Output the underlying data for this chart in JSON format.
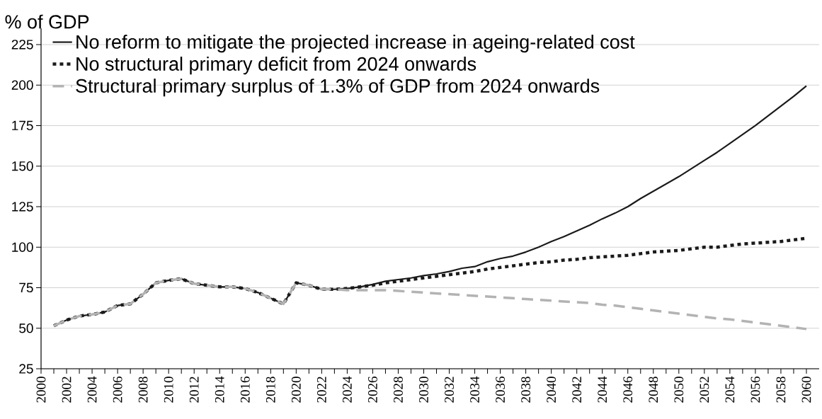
{
  "chart_data": {
    "type": "line",
    "ylabel": "% of GDP",
    "xlim": [
      2000,
      2061
    ],
    "ylim": [
      25,
      235
    ],
    "yticks": [
      25,
      50,
      75,
      100,
      125,
      150,
      175,
      200,
      225
    ],
    "xticks": [
      2000,
      {
        "value": 2001,
        "label": null
      },
      2002,
      {
        "value": 2003,
        "label": null
      },
      2004,
      {
        "value": 2005,
        "label": null
      },
      2006,
      {
        "value": 2007,
        "label": null
      },
      2008,
      {
        "value": 2009,
        "label": null
      },
      2010,
      {
        "value": 2011,
        "label": null
      },
      2012,
      {
        "value": 2013,
        "label": null
      },
      2014,
      {
        "value": 2015,
        "label": null
      },
      2016,
      {
        "value": 2017,
        "label": null
      },
      2018,
      {
        "value": 2019,
        "label": null
      },
      2020,
      {
        "value": 2021,
        "label": null
      },
      2022,
      {
        "value": 2023,
        "label": null
      },
      2024,
      {
        "value": 2025,
        "label": null
      },
      2026,
      {
        "value": 2027,
        "label": null
      },
      2028,
      {
        "value": 2029,
        "label": null
      },
      2030,
      {
        "value": 2031,
        "label": null
      },
      2032,
      {
        "value": 2033,
        "label": null
      },
      2034,
      {
        "value": 2035,
        "label": null
      },
      2036,
      {
        "value": 2037,
        "label": null
      },
      2038,
      {
        "value": 2039,
        "label": null
      },
      2040,
      {
        "value": 2041,
        "label": null
      },
      2042,
      {
        "value": 2043,
        "label": null
      },
      2044,
      {
        "value": 2045,
        "label": null
      },
      2046,
      {
        "value": 2047,
        "label": null
      },
      2048,
      {
        "value": 2049,
        "label": null
      },
      2050,
      {
        "value": 2051,
        "label": null
      },
      2052,
      {
        "value": 2053,
        "label": null
      },
      2054,
      {
        "value": 2055,
        "label": null
      },
      2056,
      {
        "value": 2057,
        "label": null
      },
      2058,
      {
        "value": 2059,
        "label": null
      },
      2060
    ],
    "grid": "y",
    "legend": "top left",
    "marker": "none",
    "x": [
      2001,
      2002,
      2003,
      2004,
      2005,
      2006,
      2007,
      2008,
      2009,
      2010,
      2011,
      2012,
      2013,
      2014,
      2015,
      2016,
      2017,
      2018,
      2019,
      2020,
      2021,
      2022,
      2023,
      2024,
      2025,
      2026,
      2027,
      2028,
      2029,
      2030,
      2031,
      2032,
      2033,
      2034,
      2035,
      2036,
      2037,
      2038,
      2039,
      2040,
      2041,
      2042,
      2043,
      2044,
      2045,
      2046,
      2047,
      2048,
      2049,
      2050,
      2051,
      2052,
      2053,
      2054,
      2055,
      2056,
      2057,
      2058,
      2059,
      2060
    ],
    "series": [
      {
        "name": "No reform to mitigate the projected increase in ageing-related cost",
        "color": "#1a1a1a",
        "line_style": "solid",
        "values": [
          51.5,
          55,
          57.5,
          58.5,
          60,
          64,
          65,
          71,
          78,
          79.5,
          80.5,
          77.5,
          76.5,
          75.5,
          75.5,
          74.5,
          72,
          68.5,
          65,
          78,
          76.5,
          74,
          74,
          74.5,
          75.5,
          77,
          79,
          80,
          81,
          82.5,
          83.5,
          85,
          87,
          88,
          91,
          93,
          94.5,
          97,
          100,
          103.5,
          106.5,
          110,
          113.5,
          117.5,
          121,
          125,
          130,
          134.5,
          139,
          143.5,
          148.5,
          153.5,
          158.5,
          164,
          169.5,
          175,
          181,
          187,
          193,
          199.5
        ]
      },
      {
        "name": "No structural primary deficit from 2024 onwards",
        "color": "#1a1a1a",
        "line_style": "dotted",
        "values": [
          51.5,
          55,
          57.5,
          58.5,
          60,
          64,
          65,
          71,
          78,
          79.5,
          80.5,
          77.5,
          76.5,
          75.5,
          75.5,
          74.5,
          72,
          68.5,
          65,
          78,
          76.5,
          74,
          74,
          74.5,
          75.5,
          76.5,
          78,
          79,
          80,
          81,
          82,
          83,
          84,
          85,
          86.5,
          87.5,
          88.5,
          89.5,
          90.5,
          91,
          92,
          92.5,
          93.5,
          94,
          94.5,
          95,
          96,
          97,
          97.5,
          98,
          99,
          100,
          100,
          101,
          102,
          102.5,
          103,
          103.5,
          104.5,
          105.5
        ]
      },
      {
        "name": "Structural primary surplus of 1.3% of GDP from 2024 onwards",
        "color": "#b3b3b3",
        "line_style": "dashed",
        "values": [
          51.5,
          55,
          57.5,
          58.5,
          60,
          64,
          65,
          71,
          78,
          79.5,
          80.5,
          77.5,
          76.5,
          75.5,
          75.5,
          74.5,
          72,
          68.5,
          65,
          78,
          76.5,
          74,
          74,
          73.5,
          73.5,
          73.5,
          73.5,
          73,
          72.5,
          72,
          71.5,
          71,
          70.5,
          70,
          69.5,
          69,
          68.5,
          68,
          67.5,
          67,
          66.5,
          66,
          65.5,
          64.5,
          64,
          63,
          62,
          61,
          60,
          59,
          58,
          57,
          56,
          55.5,
          54.5,
          53.5,
          52.5,
          51.5,
          50.5,
          49.5
        ]
      }
    ]
  }
}
